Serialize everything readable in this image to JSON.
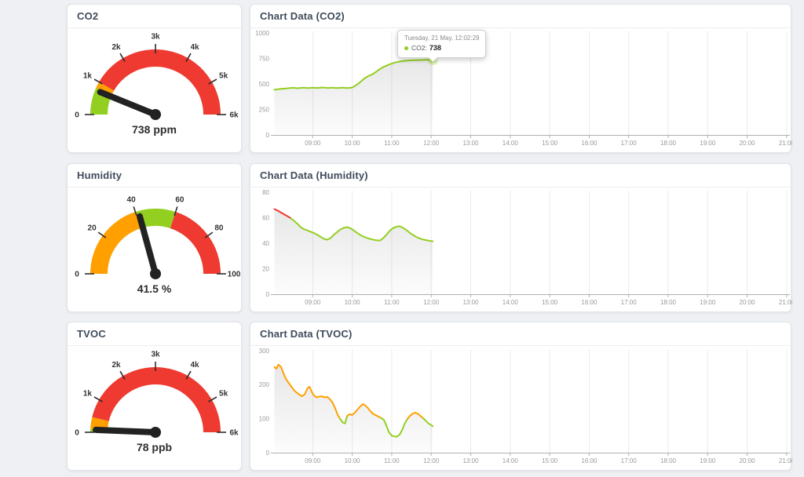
{
  "colors": {
    "green": "#93cf21",
    "orange": "#ffa000",
    "red": "#ee3a30",
    "needle": "#222222",
    "page_bg": "#eef0f3",
    "panel_bg": "#ffffff",
    "title_text": "#3f4b5b",
    "value_text": "#2e2e2e",
    "axis": "#b0b0b0",
    "axis_label": "#999999",
    "grid": "#ebebeb"
  },
  "gauges": [
    {
      "title": "CO2",
      "value": 738,
      "value_label": "738 ppm",
      "min": 0,
      "max": 6000,
      "ticks": [
        {
          "value": 0,
          "label": "0"
        },
        {
          "value": 1000,
          "label": "1k"
        },
        {
          "value": 2000,
          "label": "2k"
        },
        {
          "value": 3000,
          "label": "3k"
        },
        {
          "value": 4000,
          "label": "4k"
        },
        {
          "value": 5000,
          "label": "5k"
        },
        {
          "value": 6000,
          "label": "6k"
        }
      ],
      "zones": [
        {
          "from": 0,
          "to": 800,
          "color": "#93cf21"
        },
        {
          "from": 800,
          "to": 1000,
          "color": "#ffa000"
        },
        {
          "from": 1000,
          "to": 6000,
          "color": "#ee3a30"
        }
      ]
    },
    {
      "title": "Humidity",
      "value": 41.5,
      "value_label": "41.5 %",
      "min": 0,
      "max": 100,
      "ticks": [
        {
          "value": 0,
          "label": "0"
        },
        {
          "value": 20,
          "label": "20"
        },
        {
          "value": 40,
          "label": "40"
        },
        {
          "value": 60,
          "label": "60"
        },
        {
          "value": 80,
          "label": "80"
        },
        {
          "value": 100,
          "label": "100"
        }
      ],
      "zones": [
        {
          "from": 0,
          "to": 40,
          "color": "#ffa000"
        },
        {
          "from": 40,
          "to": 60,
          "color": "#93cf21"
        },
        {
          "from": 60,
          "to": 100,
          "color": "#ee3a30"
        }
      ]
    },
    {
      "title": "TVOC",
      "value": 78,
      "value_label": "78 ppb",
      "min": 0,
      "max": 6000,
      "ticks": [
        {
          "value": 0,
          "label": "0"
        },
        {
          "value": 1000,
          "label": "1k"
        },
        {
          "value": 2000,
          "label": "2k"
        },
        {
          "value": 3000,
          "label": "3k"
        },
        {
          "value": 4000,
          "label": "4k"
        },
        {
          "value": 5000,
          "label": "5k"
        },
        {
          "value": 6000,
          "label": "6k"
        }
      ],
      "zones": [
        {
          "from": 0,
          "to": 100,
          "color": "#93cf21"
        },
        {
          "from": 100,
          "to": 450,
          "color": "#ffa000"
        },
        {
          "from": 450,
          "to": 6000,
          "color": "#ee3a30"
        }
      ]
    }
  ],
  "tooltip": {
    "date": "Tuesday, 21 May, 12:02:29",
    "label": "CO2:",
    "value": "738"
  },
  "chart_data": [
    {
      "type": "line",
      "title": "Chart Data (CO2)",
      "series_name": "CO2",
      "ylim": [
        0,
        1000
      ],
      "yticks": [
        0,
        250,
        500,
        750,
        1000
      ],
      "xticks": [
        "09:00",
        "10:00",
        "11:00",
        "12:00",
        "13:00",
        "14:00",
        "15:00",
        "16:00",
        "17:00",
        "18:00",
        "19:00",
        "20:00",
        "21:00"
      ],
      "end_marker": true,
      "zones": [
        {
          "from": 0,
          "to": 800,
          "color": "#93cf21"
        },
        {
          "from": 800,
          "to": 1000,
          "color": "#ffa000"
        },
        {
          "from": 1000,
          "to": 6000,
          "color": "#ee3a30"
        }
      ],
      "points": [
        [
          8.03,
          443
        ],
        [
          8.2,
          452
        ],
        [
          8.35,
          457
        ],
        [
          8.5,
          462
        ],
        [
          8.62,
          458
        ],
        [
          8.75,
          463
        ],
        [
          8.88,
          460
        ],
        [
          9.0,
          464
        ],
        [
          9.12,
          461
        ],
        [
          9.25,
          465
        ],
        [
          9.38,
          461
        ],
        [
          9.5,
          464
        ],
        [
          9.62,
          460
        ],
        [
          9.75,
          463
        ],
        [
          9.88,
          459
        ],
        [
          10.0,
          465
        ],
        [
          10.08,
          482
        ],
        [
          10.17,
          508
        ],
        [
          10.25,
          535
        ],
        [
          10.33,
          560
        ],
        [
          10.42,
          580
        ],
        [
          10.5,
          592
        ],
        [
          10.58,
          612
        ],
        [
          10.67,
          638
        ],
        [
          10.75,
          658
        ],
        [
          10.83,
          674
        ],
        [
          10.92,
          688
        ],
        [
          11.0,
          700
        ],
        [
          11.08,
          710
        ],
        [
          11.17,
          717
        ],
        [
          11.25,
          723
        ],
        [
          11.33,
          727
        ],
        [
          11.42,
          730
        ],
        [
          11.5,
          732
        ],
        [
          11.58,
          733
        ],
        [
          11.67,
          734
        ],
        [
          11.75,
          735
        ],
        [
          11.83,
          736
        ],
        [
          11.92,
          737
        ],
        [
          12.04,
          738
        ]
      ]
    },
    {
      "type": "line",
      "title": "Chart Data (Humidity)",
      "series_name": "Humidity",
      "ylim": [
        0,
        80
      ],
      "yticks": [
        0,
        20,
        40,
        60,
        80
      ],
      "xticks": [
        "09:00",
        "10:00",
        "11:00",
        "12:00",
        "13:00",
        "14:00",
        "15:00",
        "16:00",
        "17:00",
        "18:00",
        "19:00",
        "20:00",
        "21:00"
      ],
      "end_marker": false,
      "zones": [
        {
          "from": 0,
          "to": 40,
          "color": "#ffa000"
        },
        {
          "from": 40,
          "to": 60,
          "color": "#93cf21"
        },
        {
          "from": 60,
          "to": 100,
          "color": "#ee3a30"
        }
      ],
      "points": [
        [
          8.03,
          66.8
        ],
        [
          8.12,
          65.5
        ],
        [
          8.2,
          64
        ],
        [
          8.28,
          62.5
        ],
        [
          8.37,
          61
        ],
        [
          8.45,
          59.5
        ],
        [
          8.53,
          57.5
        ],
        [
          8.62,
          55
        ],
        [
          8.7,
          52.5
        ],
        [
          8.78,
          51
        ],
        [
          8.87,
          50
        ],
        [
          8.95,
          49
        ],
        [
          9.03,
          48
        ],
        [
          9.12,
          46.5
        ],
        [
          9.2,
          45
        ],
        [
          9.28,
          43.5
        ],
        [
          9.37,
          42.8
        ],
        [
          9.45,
          44
        ],
        [
          9.53,
          46.5
        ],
        [
          9.62,
          48.8
        ],
        [
          9.7,
          50.8
        ],
        [
          9.78,
          52
        ],
        [
          9.87,
          52.6
        ],
        [
          9.95,
          51.8
        ],
        [
          10.03,
          50.2
        ],
        [
          10.12,
          48.2
        ],
        [
          10.2,
          46.5
        ],
        [
          10.28,
          45.2
        ],
        [
          10.37,
          44.2
        ],
        [
          10.45,
          43.4
        ],
        [
          10.53,
          42.8
        ],
        [
          10.62,
          42.3
        ],
        [
          10.7,
          42.1
        ],
        [
          10.78,
          43.8
        ],
        [
          10.87,
          46.8
        ],
        [
          10.95,
          49.8
        ],
        [
          11.03,
          51.8
        ],
        [
          11.12,
          53
        ],
        [
          11.2,
          53.3
        ],
        [
          11.28,
          52.2
        ],
        [
          11.37,
          50.4
        ],
        [
          11.45,
          48.4
        ],
        [
          11.53,
          46.6
        ],
        [
          11.62,
          45
        ],
        [
          11.7,
          43.8
        ],
        [
          11.78,
          43
        ],
        [
          11.87,
          42.4
        ],
        [
          11.95,
          41.9
        ],
        [
          12.04,
          41.5
        ]
      ]
    },
    {
      "type": "line",
      "title": "Chart Data (TVOC)",
      "series_name": "TVOC",
      "ylim": [
        0,
        300
      ],
      "yticks": [
        0,
        100,
        200,
        300
      ],
      "xticks": [
        "09:00",
        "10:00",
        "11:00",
        "12:00",
        "13:00",
        "14:00",
        "15:00",
        "16:00",
        "17:00",
        "18:00",
        "19:00",
        "20:00",
        "21:00"
      ],
      "end_marker": false,
      "zones": [
        {
          "from": 0,
          "to": 100,
          "color": "#93cf21"
        },
        {
          "from": 100,
          "to": 450,
          "color": "#ffa000"
        },
        {
          "from": 450,
          "to": 6000,
          "color": "#ee3a30"
        }
      ],
      "points": [
        [
          8.03,
          252
        ],
        [
          8.08,
          247
        ],
        [
          8.13,
          259
        ],
        [
          8.2,
          252
        ],
        [
          8.27,
          230
        ],
        [
          8.33,
          215
        ],
        [
          8.4,
          204
        ],
        [
          8.47,
          193
        ],
        [
          8.53,
          183
        ],
        [
          8.6,
          176
        ],
        [
          8.67,
          170
        ],
        [
          8.73,
          166
        ],
        [
          8.8,
          172
        ],
        [
          8.87,
          190
        ],
        [
          8.92,
          194
        ],
        [
          8.97,
          180
        ],
        [
          9.03,
          168
        ],
        [
          9.1,
          163
        ],
        [
          9.17,
          165
        ],
        [
          9.23,
          166
        ],
        [
          9.3,
          163
        ],
        [
          9.37,
          164
        ],
        [
          9.43,
          158
        ],
        [
          9.5,
          148
        ],
        [
          9.57,
          130
        ],
        [
          9.63,
          112
        ],
        [
          9.7,
          98
        ],
        [
          9.77,
          88
        ],
        [
          9.82,
          86
        ],
        [
          9.87,
          108
        ],
        [
          9.93,
          113
        ],
        [
          10.0,
          111
        ],
        [
          10.07,
          118
        ],
        [
          10.13,
          126
        ],
        [
          10.2,
          136
        ],
        [
          10.27,
          143
        ],
        [
          10.33,
          139
        ],
        [
          10.4,
          131
        ],
        [
          10.47,
          121
        ],
        [
          10.53,
          114
        ],
        [
          10.6,
          110
        ],
        [
          10.67,
          106
        ],
        [
          10.73,
          102
        ],
        [
          10.8,
          97
        ],
        [
          10.87,
          78
        ],
        [
          10.93,
          60
        ],
        [
          11.0,
          50
        ],
        [
          11.07,
          48
        ],
        [
          11.13,
          47
        ],
        [
          11.2,
          53
        ],
        [
          11.27,
          68
        ],
        [
          11.33,
          86
        ],
        [
          11.4,
          100
        ],
        [
          11.47,
          109
        ],
        [
          11.53,
          115
        ],
        [
          11.6,
          118
        ],
        [
          11.67,
          114
        ],
        [
          11.73,
          108
        ],
        [
          11.8,
          101
        ],
        [
          11.87,
          93
        ],
        [
          11.93,
          86
        ],
        [
          12.04,
          78
        ]
      ]
    }
  ]
}
